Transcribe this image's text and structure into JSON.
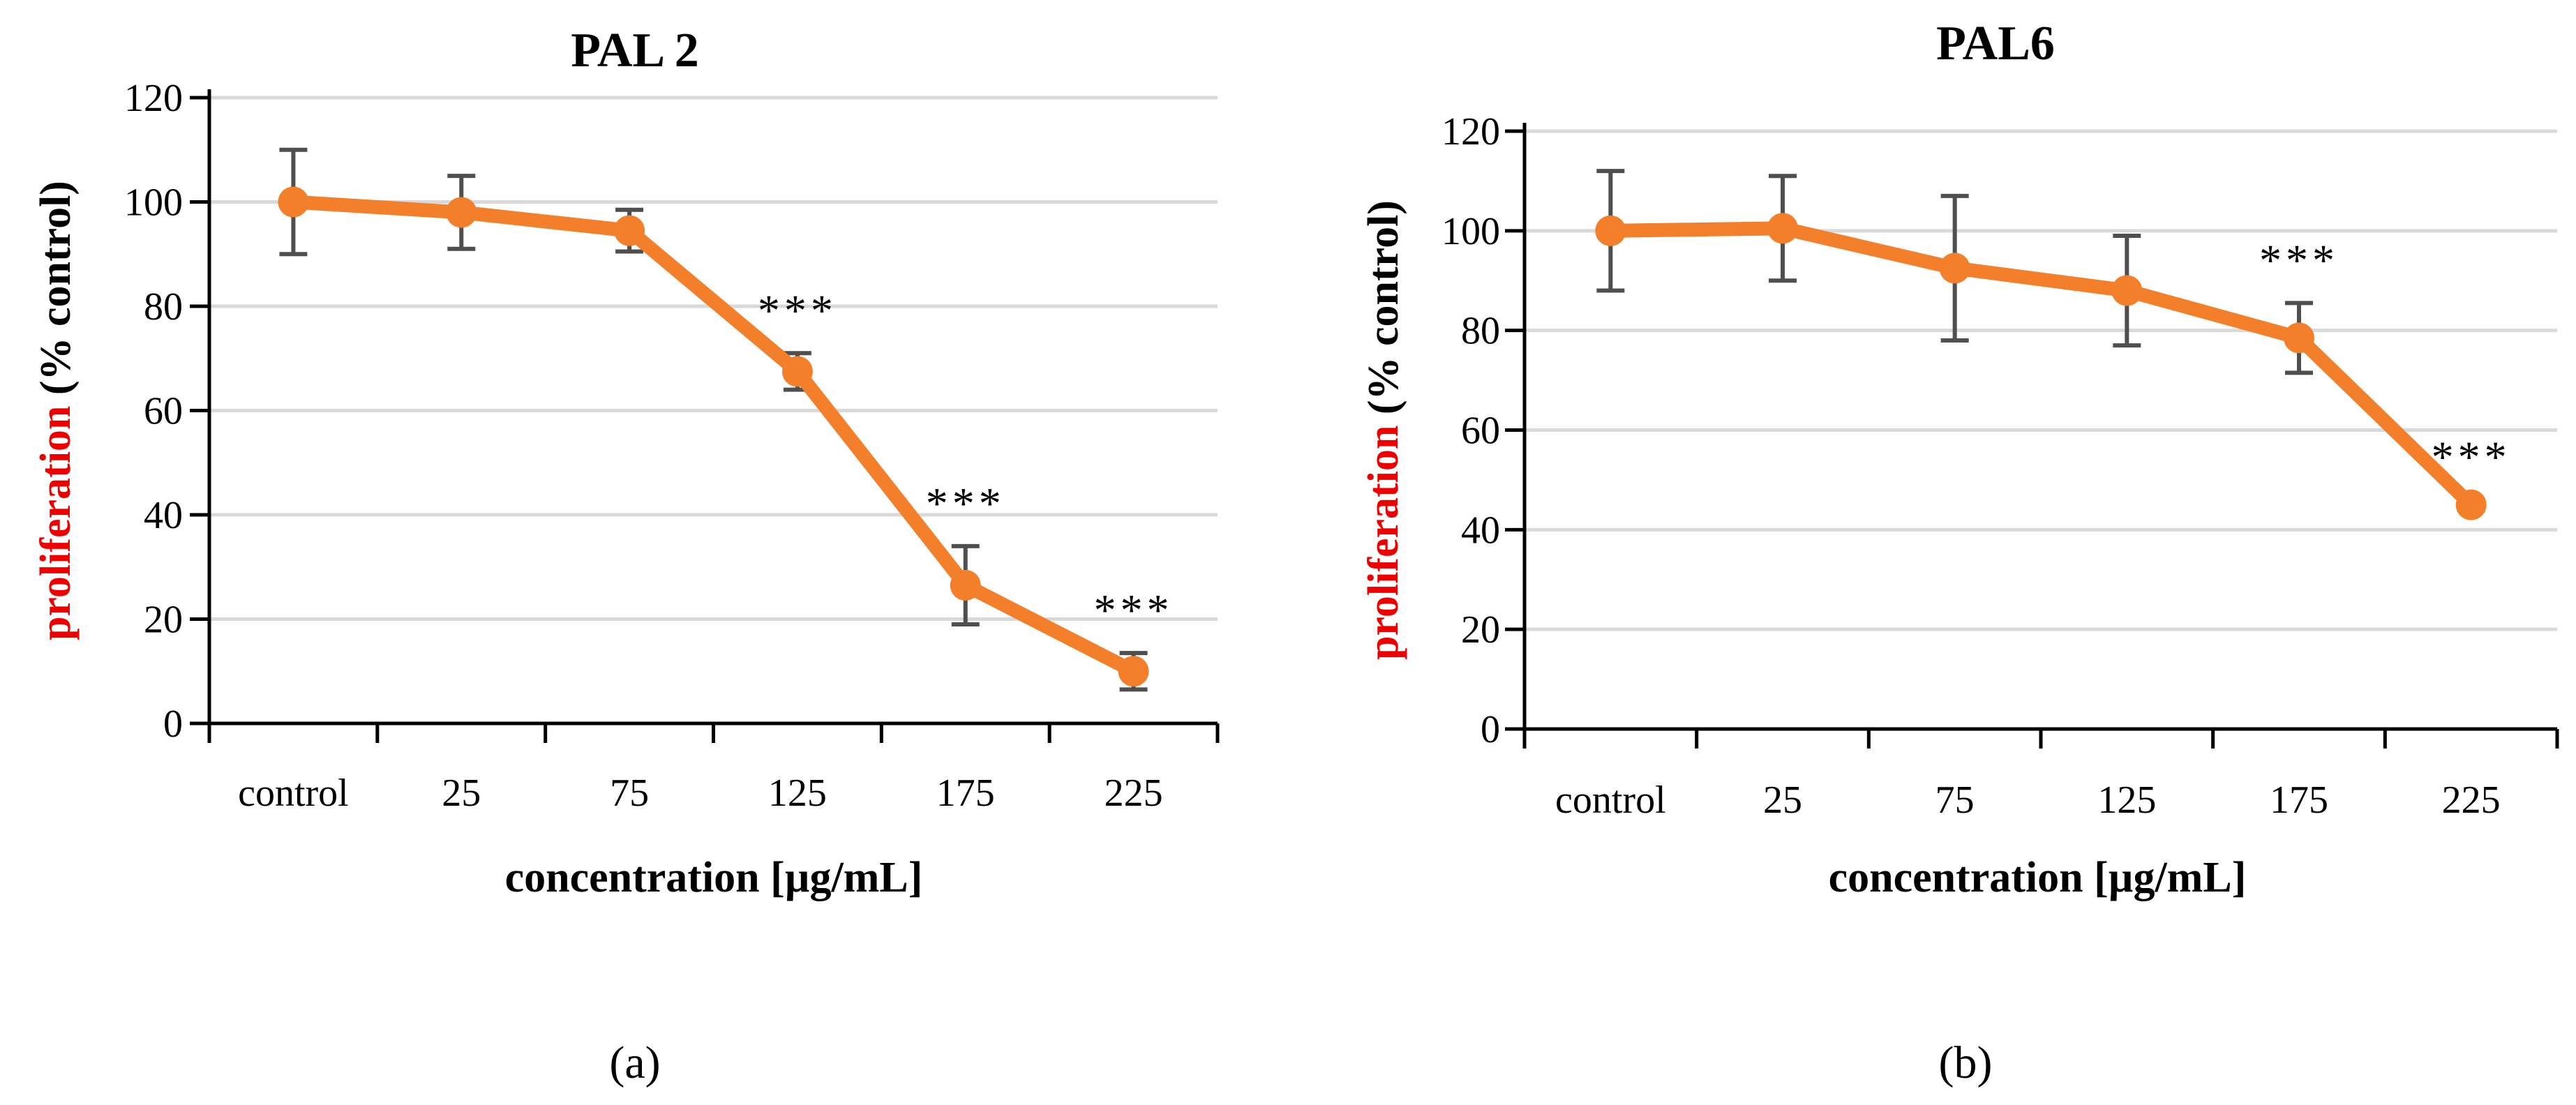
{
  "colors": {
    "series": "#f47f2a",
    "error_bar": "#4f4f4f",
    "grid": "#d9d9d9",
    "axis": "#000000",
    "ylabel_highlight": "#ee0000"
  },
  "chart_data": [
    {
      "type": "line",
      "title": "PAL 2",
      "panel_label": "(a)",
      "categories": [
        "control",
        "25",
        "75",
        "125",
        "175",
        "225"
      ],
      "series": [
        {
          "values": [
            100,
            98,
            94.5,
            67.5,
            26.5,
            10
          ],
          "error": [
            10,
            7,
            4,
            3.5,
            7.5,
            3.5
          ]
        }
      ],
      "significance": [
        "",
        "",
        "",
        "***",
        "***",
        "***"
      ],
      "xlabel": "concentration [µg/mL]",
      "ylabel_parts": [
        "proliferation",
        " (% control)"
      ],
      "yticks": [
        "0",
        "20",
        "40",
        "60",
        "80",
        "100",
        "120"
      ],
      "ylim": [
        0,
        120
      ],
      "grid": true
    },
    {
      "type": "line",
      "title": "PAL6",
      "panel_label": "(b)",
      "categories": [
        "control",
        "25",
        "75",
        "125",
        "175",
        "225"
      ],
      "series": [
        {
          "values": [
            100,
            100.5,
            92.5,
            88,
            78.5,
            45
          ],
          "error": [
            12,
            10.5,
            14.5,
            11,
            7,
            1
          ]
        }
      ],
      "significance": [
        "",
        "",
        "",
        "",
        "***",
        "***"
      ],
      "xlabel": "concentration [µg/mL]",
      "ylabel_parts": [
        "proliferation",
        " (% control)"
      ],
      "yticks": [
        "0",
        "20",
        "40",
        "60",
        "80",
        "100",
        "120"
      ],
      "ylim": [
        0,
        120
      ],
      "grid": true
    }
  ]
}
